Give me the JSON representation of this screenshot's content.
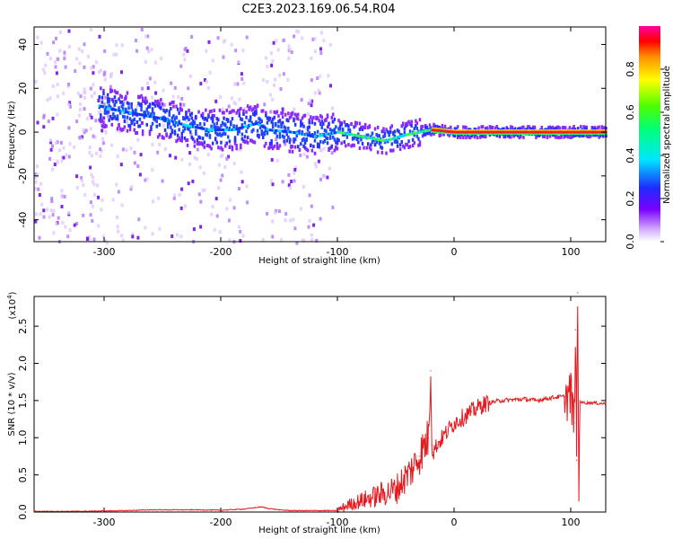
{
  "figure_title": "C2E3.2023.169.06.54.R04",
  "chart_data": [
    {
      "type": "heatmap",
      "title": "",
      "xlabel": "Height of straight line (km)",
      "ylabel": "Frequency (Hz)",
      "xlim": [
        -360,
        130
      ],
      "ylim": [
        -50,
        48
      ],
      "xticks": [
        -300,
        -200,
        -100,
        0,
        100
      ],
      "xtick_labels": [
        "-300",
        "-200",
        "-100",
        "0",
        "100"
      ],
      "yticks": [
        -40,
        -20,
        0,
        20,
        40
      ],
      "ytick_labels": [
        "-40",
        "-20",
        "0",
        "20",
        "40"
      ],
      "colorbar": {
        "label": "Normalized spectral amplitude",
        "range": [
          0.0,
          1.0
        ],
        "ticks": [
          0.0,
          0.2,
          0.4,
          0.6,
          0.8
        ],
        "tick_labels": [
          "0.0",
          "0.2",
          "0.4",
          "0.6",
          "0.8"
        ]
      },
      "ridge": [
        {
          "x": -305,
          "f": 12
        },
        {
          "x": -290,
          "f": 10
        },
        {
          "x": -270,
          "f": 8
        },
        {
          "x": -250,
          "f": 6
        },
        {
          "x": -230,
          "f": 3
        },
        {
          "x": -210,
          "f": 1
        },
        {
          "x": -190,
          "f": 1
        },
        {
          "x": -170,
          "f": 4
        },
        {
          "x": -160,
          "f": 1
        },
        {
          "x": -140,
          "f": 0
        },
        {
          "x": -120,
          "f": -2
        },
        {
          "x": -100,
          "f": 0
        },
        {
          "x": -80,
          "f": -2
        },
        {
          "x": -60,
          "f": -4
        },
        {
          "x": -40,
          "f": -1
        },
        {
          "x": -20,
          "f": 1
        },
        {
          "x": 0,
          "f": 0
        },
        {
          "x": 50,
          "f": 0
        },
        {
          "x": 100,
          "f": 0
        },
        {
          "x": 130,
          "f": 0
        }
      ],
      "grid": false
    },
    {
      "type": "line",
      "title": "",
      "xlabel": "Height of straight line (km)",
      "ylabel": "SNR (10 * v/v)",
      "multiplier_label": "(x10",
      "multiplier_exp": "4",
      "multiplier_close": ")",
      "xlim": [
        -360,
        130
      ],
      "ylim": [
        0,
        2.9
      ],
      "xticks": [
        -300,
        -200,
        -100,
        0,
        100
      ],
      "xtick_labels": [
        "-300",
        "-200",
        "-100",
        "0",
        "100"
      ],
      "yticks": [
        0.0,
        0.5,
        1.0,
        1.5,
        2.0,
        2.5
      ],
      "ytick_labels": [
        "0.0",
        "0.5",
        "1.0",
        "1.5",
        "2.0",
        "2.5"
      ],
      "series": [
        {
          "color": "#e8191e",
          "x": [
            -360,
            -340,
            -320,
            -300,
            -280,
            -260,
            -240,
            -220,
            -200,
            -180,
            -165,
            -160,
            -150,
            -140,
            -120,
            -100,
            -90,
            -80,
            -70,
            -60,
            -50,
            -40,
            -35,
            -30,
            -25,
            -22,
            -20,
            -19,
            -18,
            -15,
            -10,
            -5,
            0,
            5,
            10,
            15,
            20,
            25,
            30,
            40,
            50,
            60,
            70,
            80,
            90,
            95,
            100,
            103,
            104,
            105,
            106,
            107,
            108,
            110,
            115,
            120,
            125,
            130
          ],
          "values": [
            0.01,
            0.01,
            0.01,
            0.015,
            0.02,
            0.03,
            0.03,
            0.03,
            0.025,
            0.04,
            0.07,
            0.05,
            0.03,
            0.02,
            0.02,
            0.02,
            0.1,
            0.15,
            0.2,
            0.25,
            0.3,
            0.5,
            0.6,
            0.75,
            0.9,
            1.0,
            1.9,
            0.9,
            0.8,
            0.9,
            1.0,
            1.1,
            1.2,
            1.25,
            1.3,
            1.35,
            1.4,
            1.45,
            1.47,
            1.5,
            1.51,
            1.52,
            1.5,
            1.53,
            1.55,
            1.55,
            1.58,
            1.2,
            2.45,
            0.7,
            2.95,
            0.2,
            1.5,
            1.47,
            1.47,
            1.47,
            1.46,
            1.46
          ]
        }
      ],
      "grid": false
    }
  ]
}
